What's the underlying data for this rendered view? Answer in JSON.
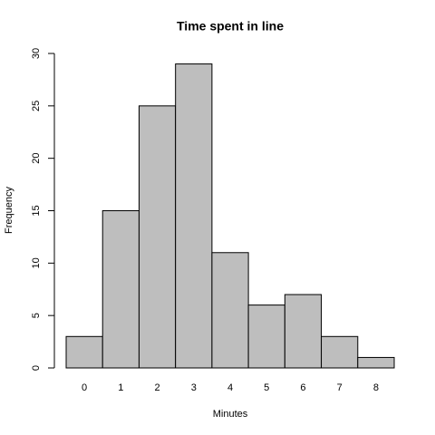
{
  "chart_data": {
    "type": "bar",
    "title": "Time spent in line",
    "x_label": "Minutes",
    "y_label": "Frequency",
    "categories": [
      "0",
      "1",
      "2",
      "3",
      "4",
      "5",
      "6",
      "7",
      "8"
    ],
    "values": [
      3,
      15,
      25,
      29,
      11,
      6,
      7,
      3,
      1
    ],
    "color": "#bebebe",
    "ylim": [
      0,
      30
    ],
    "yticks": [
      0,
      5,
      10,
      15,
      20,
      25,
      30
    ]
  }
}
